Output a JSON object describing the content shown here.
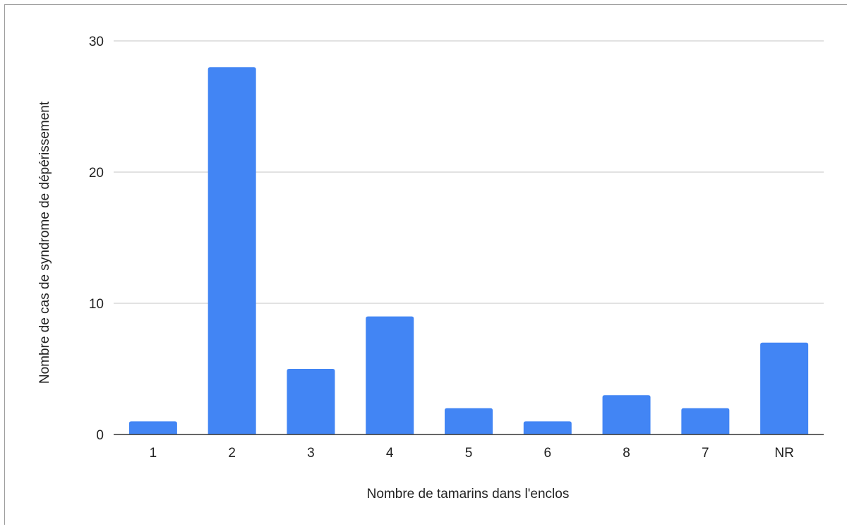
{
  "chart_data": {
    "type": "bar",
    "categories": [
      "1",
      "2",
      "3",
      "4",
      "5",
      "6",
      "8",
      "7",
      "NR"
    ],
    "values": [
      1,
      28,
      5,
      9,
      2,
      1,
      3,
      2,
      7
    ],
    "xlabel": "Nombre de tamarins dans l'enclos",
    "ylabel": "Nombre de cas de syndrome de dépérissement",
    "ylim": [
      0,
      30
    ],
    "yticks": [
      0,
      10,
      20,
      30
    ],
    "grid": true,
    "legend": "none",
    "colors": {
      "bar": "#4285f4",
      "grid": "#d9d9d9",
      "baseline": "#333333"
    }
  }
}
